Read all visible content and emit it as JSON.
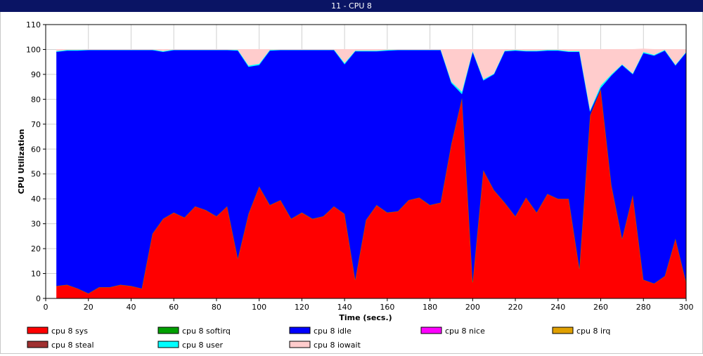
{
  "window": {
    "title": "11 - CPU 8"
  },
  "chart_data": {
    "type": "area",
    "stacked": true,
    "xlabel": "Time (secs.)",
    "ylabel": "CPU Utilization",
    "xlim": [
      0,
      300
    ],
    "ylim": [
      0,
      110
    ],
    "x_ticks": [
      0,
      20,
      40,
      60,
      80,
      100,
      120,
      140,
      160,
      180,
      200,
      220,
      240,
      260,
      280,
      300
    ],
    "y_ticks": [
      0,
      10,
      20,
      30,
      40,
      50,
      60,
      70,
      80,
      90,
      100,
      110
    ],
    "grid": true,
    "legend_position": "bottom",
    "x": [
      5,
      10,
      15,
      20,
      25,
      30,
      35,
      40,
      45,
      50,
      55,
      60,
      65,
      70,
      75,
      80,
      85,
      90,
      95,
      100,
      105,
      110,
      115,
      120,
      125,
      130,
      135,
      140,
      145,
      150,
      155,
      160,
      165,
      170,
      175,
      180,
      185,
      190,
      195,
      200,
      205,
      210,
      215,
      220,
      225,
      230,
      235,
      240,
      245,
      250,
      255,
      260,
      265,
      270,
      275,
      280,
      285,
      290,
      295,
      300
    ],
    "series": [
      {
        "name": "cpu 8 sys",
        "color": "#ff0000",
        "values": [
          5,
          5.5,
          4,
          2,
          4.5,
          4.5,
          5.5,
          5,
          4,
          26,
          32,
          34.5,
          32.5,
          37,
          35.5,
          33,
          37,
          16,
          34,
          45,
          37.5,
          39.5,
          32,
          34.5,
          32,
          33,
          37,
          34,
          7.5,
          31.5,
          37.5,
          34.5,
          35,
          39.5,
          40.5,
          37.5,
          38.5,
          62,
          80.5,
          6.5,
          51.5,
          43.5,
          38.5,
          33,
          40.5,
          34.5,
          42,
          40,
          40,
          12,
          73.5,
          84,
          45.5,
          24,
          41.5,
          7.5,
          6,
          9,
          24,
          6.5
        ]
      },
      {
        "name": "cpu 8 softirq",
        "color": "#00a000",
        "values": [
          0,
          0,
          0,
          0,
          0,
          0,
          0,
          0,
          0,
          0,
          0,
          0,
          0,
          0,
          0,
          0,
          0,
          0,
          0,
          0,
          0,
          0,
          0,
          0,
          0,
          0,
          0,
          0,
          0,
          0,
          0,
          0,
          0,
          0,
          0,
          0,
          0,
          0,
          0,
          0,
          0,
          0,
          0,
          0,
          0,
          0,
          0,
          0,
          0,
          0,
          0,
          0,
          0,
          0,
          0,
          0,
          0,
          0,
          0,
          0
        ]
      },
      {
        "name": "cpu 8 idle",
        "color": "#0000ff",
        "values": [
          94,
          94,
          95.5,
          97.7,
          95.2,
          95.2,
          94.2,
          94.7,
          95.7,
          73.7,
          67,
          65.2,
          67.2,
          62.7,
          64.2,
          66.7,
          62.7,
          83.5,
          59,
          48.7,
          62,
          60.2,
          67.7,
          65.2,
          67.7,
          66.7,
          62.7,
          60,
          91.7,
          67.7,
          61.7,
          65,
          64.7,
          60.2,
          59.2,
          62.2,
          61.2,
          24.5,
          1.5,
          92.5,
          36,
          46.5,
          60.7,
          66.5,
          58.7,
          64.7,
          57.5,
          59.5,
          59,
          87,
          1.5,
          0.5,
          44,
          69.7,
          48.5,
          91,
          91.5,
          90.5,
          69.5,
          92.2
        ]
      },
      {
        "name": "cpu 8 nice",
        "color": "#ff00ff",
        "values": [
          0,
          0,
          0,
          0,
          0,
          0,
          0,
          0,
          0,
          0,
          0,
          0,
          0,
          0,
          0,
          0,
          0,
          0,
          0,
          0,
          0,
          0,
          0,
          0,
          0,
          0,
          0,
          0,
          0,
          0,
          0,
          0,
          0,
          0,
          0,
          0,
          0,
          0,
          0,
          0,
          0,
          0,
          0,
          0,
          0,
          0,
          0,
          0,
          0,
          0,
          0,
          0,
          0,
          0,
          0,
          0,
          0,
          0,
          0,
          0
        ]
      },
      {
        "name": "cpu 8 irq",
        "color": "#e0a000",
        "values": [
          0,
          0,
          0,
          0,
          0,
          0,
          0,
          0,
          0,
          0,
          0,
          0,
          0,
          0,
          0,
          0,
          0,
          0,
          0,
          0,
          0,
          0,
          0,
          0,
          0,
          0,
          0,
          0,
          0,
          0,
          0,
          0,
          0,
          0,
          0,
          0,
          0,
          0,
          0,
          0,
          0,
          0,
          0,
          0,
          0,
          0,
          0,
          0,
          0,
          0,
          0,
          0,
          0,
          0,
          0,
          0,
          0,
          0,
          0,
          0
        ]
      },
      {
        "name": "cpu 8 steal",
        "color": "#a03030",
        "values": [
          0,
          0,
          0,
          0,
          0,
          0,
          0,
          0,
          0,
          0,
          0,
          0,
          0,
          0,
          0,
          0,
          0,
          0,
          0,
          0,
          0,
          0,
          0,
          0,
          0,
          0,
          0,
          0,
          0,
          0,
          0,
          0,
          0,
          0,
          0,
          0,
          0,
          0,
          0,
          0,
          0,
          0,
          0,
          0,
          0,
          0,
          0,
          0,
          0,
          0,
          0,
          0,
          0,
          0,
          0,
          0,
          0,
          0,
          0,
          0
        ]
      },
      {
        "name": "cpu 8 user",
        "color": "#00ffff",
        "values": [
          0.3,
          0.3,
          0.3,
          0.3,
          0.3,
          0.3,
          0.3,
          0.3,
          0.3,
          0.3,
          0.3,
          0.3,
          0.3,
          0.3,
          0.3,
          0.3,
          0.3,
          0.3,
          0.5,
          0.5,
          0.3,
          0.3,
          0.3,
          0.3,
          0.3,
          0.3,
          0.3,
          0.5,
          0.3,
          0.3,
          0.3,
          0.3,
          0.3,
          0.3,
          0.3,
          0.3,
          0.3,
          0.5,
          1,
          0.3,
          0.5,
          0.3,
          0.3,
          0.3,
          0.3,
          0.3,
          0.3,
          0.3,
          0.3,
          0.3,
          0.5,
          1,
          0.5,
          0.3,
          0.3,
          0.5,
          0.3,
          0.3,
          0.3,
          0.3
        ]
      },
      {
        "name": "cpu 8 iowait",
        "color": "#ffcccc",
        "values": [
          0.7,
          0.2,
          0.2,
          0,
          0,
          0,
          0,
          0,
          0,
          0,
          0.7,
          0,
          0,
          0,
          0,
          0,
          0,
          0.2,
          6.5,
          5.8,
          0.2,
          0,
          0,
          0,
          0,
          0,
          0,
          5.5,
          0.5,
          0.5,
          0.5,
          0.2,
          0,
          0,
          0,
          0,
          0,
          13,
          17,
          0.7,
          12,
          9.7,
          0.5,
          0.2,
          0.5,
          0.5,
          0.2,
          0.2,
          0.7,
          0.7,
          24.5,
          14.5,
          10,
          6,
          9.7,
          1.2,
          2.2,
          0.2,
          6.2,
          1
        ]
      }
    ]
  }
}
